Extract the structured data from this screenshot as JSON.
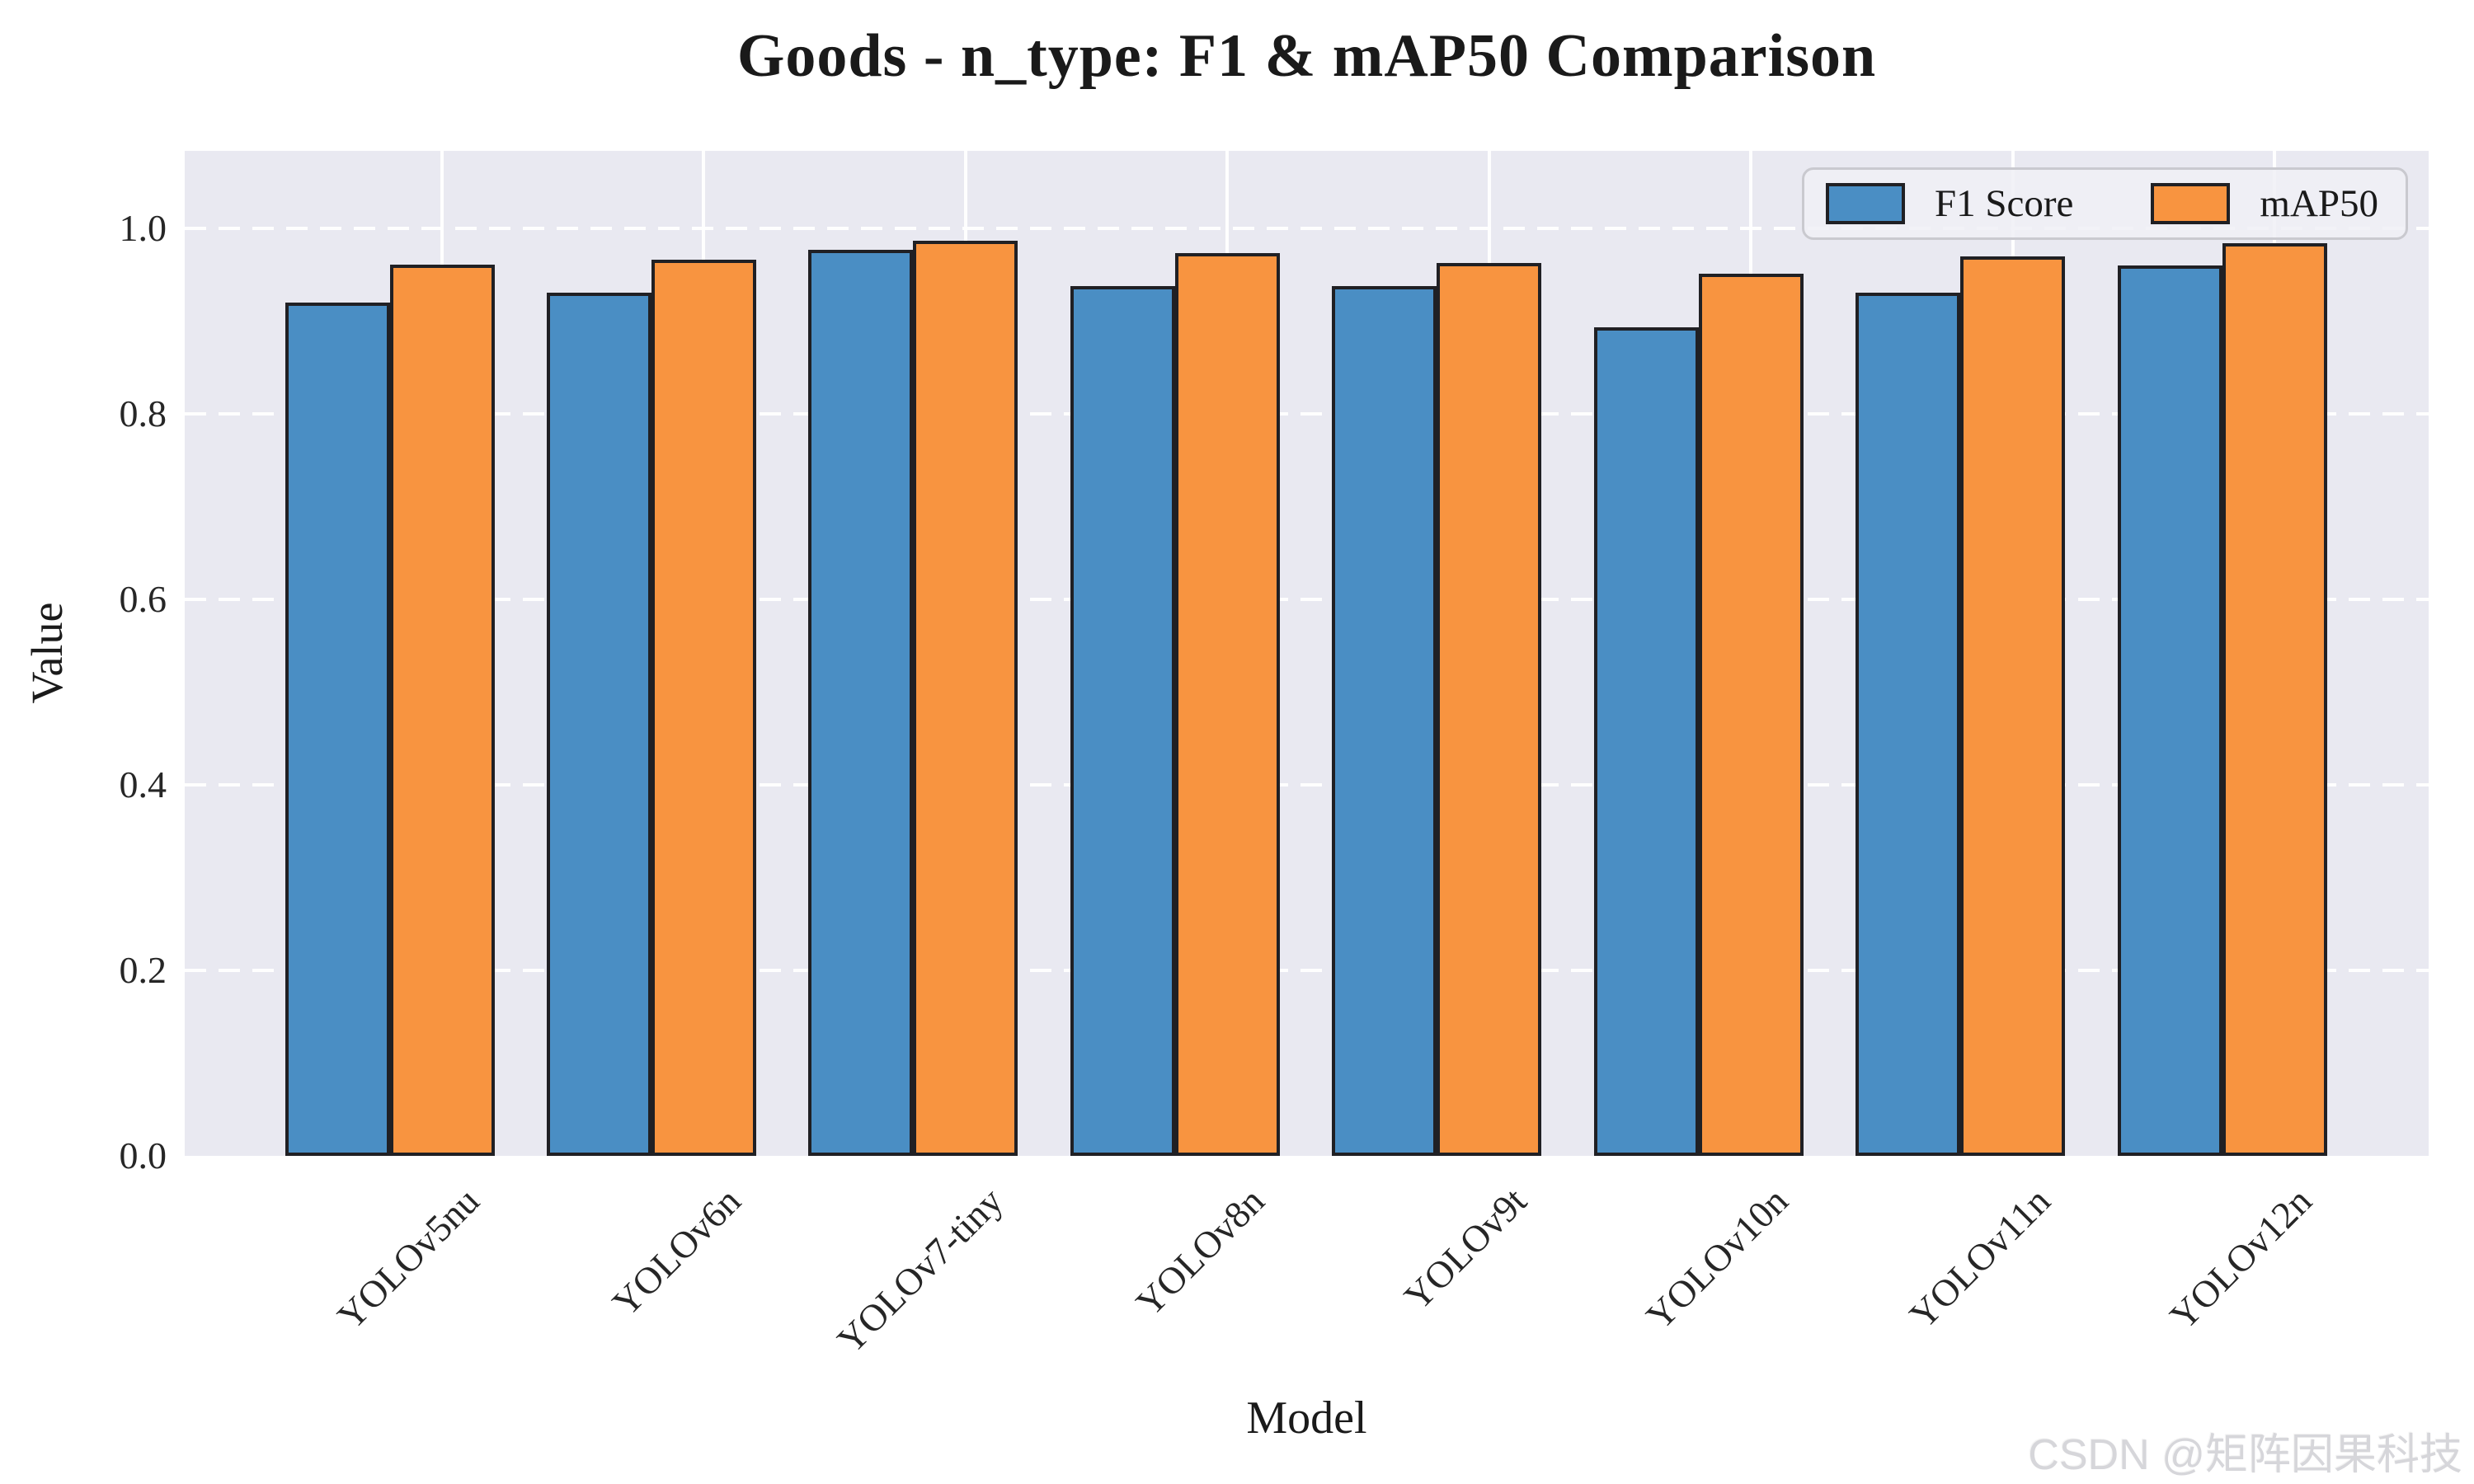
{
  "title": "Goods - n_type: F1 & mAP50 Comparison",
  "watermark": "CSDN @矩阵因果科技",
  "chart_data": {
    "type": "bar",
    "title": "Goods - n_type: F1 & mAP50 Comparison",
    "xlabel": "Model",
    "ylabel": "Value",
    "categories": [
      "YOLOv5nu",
      "YOLOv6n",
      "YOLOv7-tiny",
      "YOLOv8n",
      "YOLOv9t",
      "YOLOv10n",
      "YOLOv11n",
      "YOLOv12n"
    ],
    "series": [
      {
        "name": "F1 Score",
        "color": "#4a8ec4",
        "values": [
          0.92,
          0.931,
          0.977,
          0.938,
          0.938,
          0.893,
          0.931,
          0.96
        ]
      },
      {
        "name": "mAP50",
        "color": "#f89440",
        "values": [
          0.961,
          0.966,
          0.987,
          0.973,
          0.963,
          0.951,
          0.97,
          0.984
        ]
      }
    ],
    "ylim": [
      0.0,
      1.083
    ],
    "yticks": [
      0.0,
      0.2,
      0.4,
      0.6,
      0.8,
      1.0
    ],
    "grid": true,
    "grid_color": "#ffffff",
    "plot_bg": "#e9e9f1",
    "bar_edge_color": "#202024",
    "legend_position": "upper right",
    "x_tick_rotation": 45
  }
}
